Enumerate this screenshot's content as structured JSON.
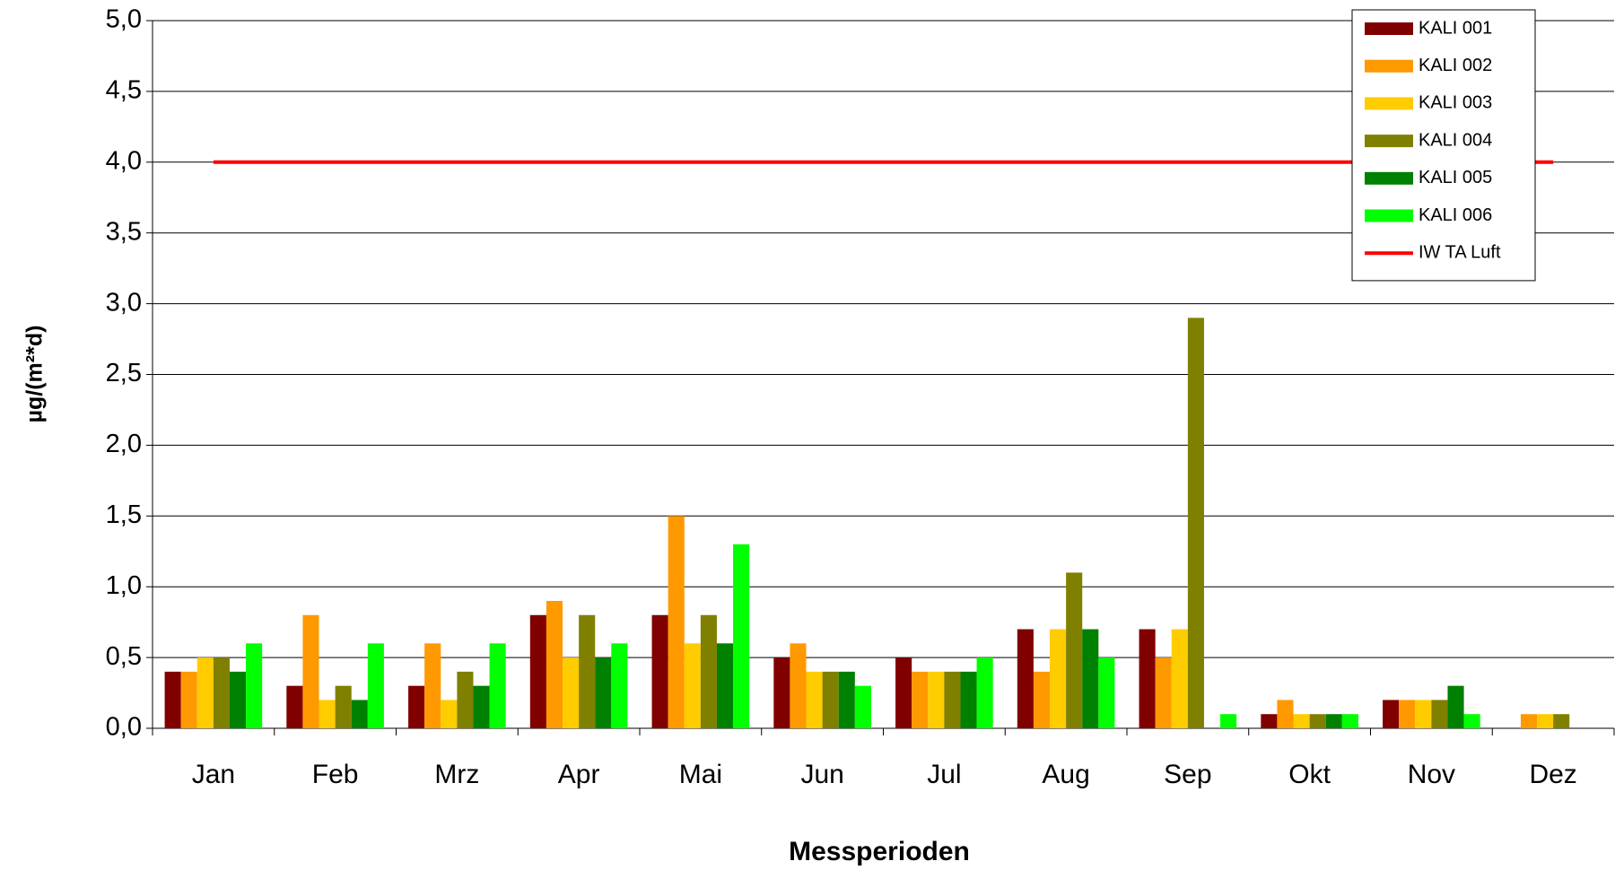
{
  "chart_data": {
    "type": "bar",
    "x_label": "Messperioden",
    "y_label": "µg/(m²*d)",
    "categories": [
      "Jan",
      "Feb",
      "Mrz",
      "Apr",
      "Mai",
      "Jun",
      "Jul",
      "Aug",
      "Sep",
      "Okt",
      "Nov",
      "Dez"
    ],
    "series": [
      {
        "name": "KALI 001",
        "color": "#800000",
        "values": [
          0.4,
          0.3,
          0.3,
          0.8,
          0.8,
          0.5,
          0.5,
          0.7,
          0.7,
          0.1,
          0.2,
          null
        ]
      },
      {
        "name": "KALI 002",
        "color": "#FF9900",
        "values": [
          0.4,
          0.8,
          0.6,
          0.9,
          1.5,
          0.6,
          0.4,
          0.4,
          0.5,
          0.2,
          0.2,
          0.1
        ]
      },
      {
        "name": "KALI 003",
        "color": "#FFCC00",
        "values": [
          0.5,
          0.2,
          0.2,
          0.5,
          0.6,
          0.4,
          0.4,
          0.7,
          0.7,
          0.1,
          0.2,
          0.1
        ]
      },
      {
        "name": "KALI 004",
        "color": "#808000",
        "values": [
          0.5,
          0.3,
          0.4,
          0.8,
          0.8,
          0.4,
          0.4,
          1.1,
          2.9,
          0.1,
          0.2,
          0.1
        ]
      },
      {
        "name": "KALI 005",
        "color": "#008000",
        "values": [
          0.4,
          0.2,
          0.3,
          0.5,
          0.6,
          0.4,
          0.4,
          0.7,
          null,
          0.1,
          0.3,
          null
        ]
      },
      {
        "name": "KALI 006",
        "color": "#00FF00",
        "values": [
          0.6,
          0.6,
          0.6,
          0.6,
          1.3,
          0.3,
          0.5,
          0.5,
          0.1,
          0.1,
          0.1,
          null
        ]
      },
      {
        "name": "IW TA Luft",
        "type": "line",
        "color": "#FF0000",
        "values": [
          4.0,
          4.0,
          4.0,
          4.0,
          4.0,
          4.0,
          4.0,
          4.0,
          4.0,
          4.0,
          4.0,
          4.0
        ]
      }
    ],
    "ylim": [
      0,
      5
    ],
    "yticks": [
      {
        "value": 0,
        "label": "0,0"
      },
      {
        "value": 0.5,
        "label": "0,5"
      },
      {
        "value": 1,
        "label": "1,0"
      },
      {
        "value": 1.5,
        "label": "1,5"
      },
      {
        "value": 2,
        "label": "2,0"
      },
      {
        "value": 2.5,
        "label": "2,5"
      },
      {
        "value": 3,
        "label": "3,0"
      },
      {
        "value": 3.5,
        "label": "3,5"
      },
      {
        "value": 4,
        "label": "4,0"
      },
      {
        "value": 4.5,
        "label": "4,5"
      },
      {
        "value": 5,
        "label": "5,0"
      }
    ],
    "grid": true,
    "legend": "top-right"
  }
}
